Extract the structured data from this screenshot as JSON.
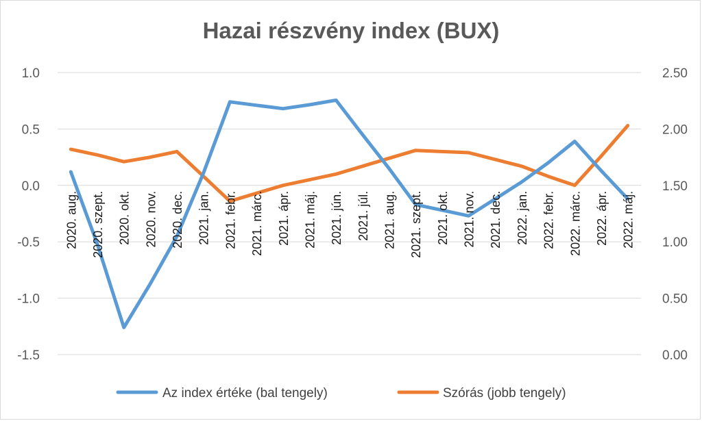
{
  "chart_data": {
    "type": "line",
    "title": "Hazai részvény index (BUX)",
    "categories": [
      "2020. aug.",
      "2020. szept.",
      "2020. okt.",
      "2020. nov.",
      "2020. dec.",
      "2021. jan.",
      "2021. febr.",
      "2021. márc.",
      "2021. ápr.",
      "2021. máj.",
      "2021. jún.",
      "2021. júl.",
      "2021. aug.",
      "2021. szept.",
      "2021. okt.",
      "2021. nov.",
      "2021. dec.",
      "2022. jan.",
      "2022. febr.",
      "2022. márc.",
      "2022. ápr.",
      "2022. máj."
    ],
    "y_left": {
      "ticks": [
        "1.0",
        "0.5",
        "0.0",
        "-0.5",
        "-1.0",
        "-1.5"
      ],
      "ylim": [
        -1.5,
        1.0
      ]
    },
    "y_right": {
      "ticks": [
        "2.50",
        "2.00",
        "1.50",
        "1.00",
        "0.50",
        "0.00"
      ],
      "ylim": [
        0,
        2.5
      ]
    },
    "grid": true,
    "legend": "bottom",
    "series": [
      {
        "name": "Az index értéke (bal tengely)",
        "axis": "left",
        "color": "#5b9bd5",
        "values": [
          0.12,
          -0.52,
          -1.26,
          -0.87,
          -0.45,
          0.11,
          0.74,
          0.71,
          0.68,
          0.715,
          0.755,
          0.45,
          0.15,
          -0.17,
          -0.22,
          -0.27,
          -0.12,
          0.03,
          0.2,
          0.39,
          0.13,
          -0.12
        ]
      },
      {
        "name": "Szórás (jobb tengely)",
        "axis": "right",
        "color": "#ed7d31",
        "values": [
          1.82,
          1.77,
          1.71,
          1.75,
          1.8,
          1.58,
          1.36,
          1.43,
          1.5,
          1.55,
          1.6,
          1.67,
          1.74,
          1.81,
          1.8,
          1.79,
          1.73,
          1.67,
          1.58,
          1.5,
          1.76,
          2.03
        ]
      }
    ]
  }
}
